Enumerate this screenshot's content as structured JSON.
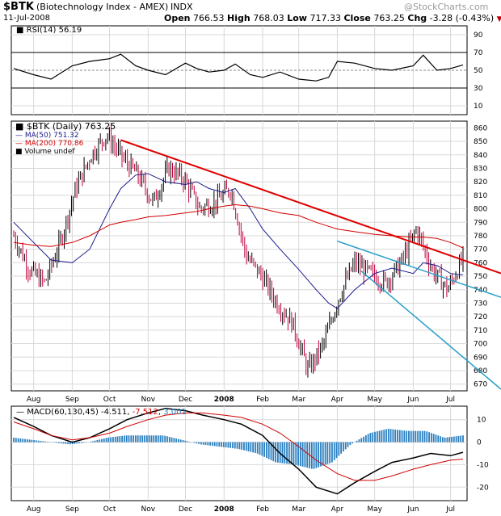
{
  "header": {
    "symbol": "$BTK",
    "name": "(Biotechnology Index - AMEX)",
    "exchange": "INDX",
    "date": "11-Jul-2008",
    "watermark": "@StockCharts.com",
    "quote": {
      "open_label": "Open",
      "open": "766.53",
      "high_label": "High",
      "high": "768.03",
      "low_label": "Low",
      "low": "717.33",
      "close_label": "Close",
      "close": "763.25",
      "chg_label": "Chg",
      "chg": "-3.28 (-0.43%)",
      "chg_marker": "▼"
    }
  },
  "rsi_panel": {
    "label": "RSI(14) 56.19",
    "ticks": [
      "90",
      "70",
      "50",
      "30",
      "10"
    ],
    "levels": [
      90,
      70,
      50,
      30,
      10
    ],
    "overbought": 70,
    "oversold": 30
  },
  "price_panel": {
    "legend": [
      {
        "text": "$BTK (Daily) 763.25",
        "color": "#000000"
      },
      {
        "text": "MA(50) 751.32",
        "color": "#1a1a8c"
      },
      {
        "text": "MA(200) 770.86",
        "color": "#d00000"
      },
      {
        "text": "Volume undef",
        "color": "#000000"
      }
    ],
    "ticks": [
      "860",
      "850",
      "840",
      "830",
      "820",
      "810",
      "800",
      "790",
      "780",
      "770",
      "760",
      "750",
      "740",
      "730",
      "720",
      "710",
      "700",
      "690",
      "680",
      "670"
    ]
  },
  "macd_panel": {
    "label_prefix": "MACD(60,130,45)",
    "macd": "-4.511",
    "signal": "-7.512",
    "histogram": "3.001",
    "ticks": [
      "10",
      "0",
      "-10",
      "-20"
    ]
  },
  "months": [
    "Aug",
    "Sep",
    "Oct",
    "Nov",
    "Dec",
    "2008",
    "Feb",
    "Mar",
    "Apr",
    "May",
    "Jun",
    "Jul"
  ],
  "colors": {
    "up": "#000000",
    "down": "#c0003c",
    "ma50": "#1a1a8c",
    "ma200": "#d00000",
    "trend_red": "#e00000",
    "trend_teal": "#2aa0c8",
    "histogram": "#2a7fc0",
    "grid": "#d8d8d8"
  },
  "chart_data": [
    {
      "type": "line",
      "title": "RSI(14) 56.19",
      "ylim": [
        0,
        100
      ],
      "guides": [
        70,
        50,
        30
      ],
      "x": [
        "2007-07-16",
        "2007-08-01",
        "2007-08-15",
        "2007-09-01",
        "2007-09-15",
        "2007-10-01",
        "2007-10-10",
        "2007-10-22",
        "2007-11-01",
        "2007-11-15",
        "2007-12-01",
        "2007-12-10",
        "2007-12-20",
        "2008-01-01",
        "2008-01-10",
        "2008-01-22",
        "2008-02-01",
        "2008-02-15",
        "2008-03-01",
        "2008-03-15",
        "2008-03-25",
        "2008-04-01",
        "2008-04-15",
        "2008-05-01",
        "2008-05-15",
        "2008-06-01",
        "2008-06-09",
        "2008-06-20",
        "2008-07-01",
        "2008-07-11"
      ],
      "series": [
        {
          "values": [
            52,
            45,
            40,
            55,
            60,
            63,
            68,
            55,
            50,
            45,
            58,
            52,
            48,
            50,
            57,
            45,
            42,
            48,
            40,
            38,
            42,
            60,
            58,
            52,
            50,
            55,
            67,
            50,
            52,
            56
          ]
        }
      ]
    },
    {
      "type": "line",
      "title": "$BTK (Daily) 763.25",
      "ylim": [
        665,
        865
      ],
      "x": [
        "2007-07-16",
        "2007-08-01",
        "2007-08-15",
        "2007-09-01",
        "2007-09-15",
        "2007-10-01",
        "2007-10-10",
        "2007-10-22",
        "2007-11-01",
        "2007-11-15",
        "2007-12-01",
        "2007-12-10",
        "2007-12-20",
        "2008-01-01",
        "2008-01-10",
        "2008-01-22",
        "2008-02-01",
        "2008-02-15",
        "2008-03-01",
        "2008-03-15",
        "2008-03-25",
        "2008-04-01",
        "2008-04-15",
        "2008-05-01",
        "2008-05-15",
        "2008-06-01",
        "2008-06-09",
        "2008-06-20",
        "2008-07-01",
        "2008-07-11"
      ],
      "series": [
        {
          "name": "$BTK (Daily) 763.25",
          "values": [
            780,
            755,
            745,
            775,
            815,
            840,
            855,
            838,
            825,
            805,
            830,
            822,
            800,
            805,
            815,
            765,
            750,
            730,
            715,
            680,
            700,
            735,
            760,
            752,
            745,
            760,
            785,
            755,
            740,
            763
          ]
        },
        {
          "name": "MA(50) 751.32",
          "values": [
            790,
            775,
            762,
            760,
            770,
            800,
            815,
            825,
            826,
            820,
            818,
            820,
            815,
            812,
            815,
            800,
            785,
            770,
            755,
            740,
            730,
            726,
            740,
            752,
            756,
            752,
            760,
            758,
            752,
            751
          ]
        },
        {
          "name": "MA(200) 770.86",
          "values": [
            775,
            773,
            772,
            775,
            780,
            788,
            790,
            792,
            794,
            795,
            797,
            798,
            800,
            802,
            803,
            802,
            800,
            797,
            795,
            790,
            787,
            785,
            783,
            781,
            780,
            779,
            779,
            778,
            775,
            771
          ]
        }
      ],
      "trendlines": [
        {
          "from": [
            "2007-10-10",
            851
          ],
          "to": [
            "2008-07-11",
            762
          ]
        },
        {
          "from": [
            "2008-04-01",
            776
          ],
          "to": [
            "2008-07-11",
            744
          ]
        },
        {
          "from": [
            "2008-04-20",
            754
          ],
          "to": [
            "2008-07-11",
            690
          ]
        }
      ]
    },
    {
      "type": "line",
      "title": "MACD(60,130,45) -4.511, -7.512, 3.001",
      "ylim": [
        -26,
        16
      ],
      "x": [
        "2007-07-16",
        "2007-08-01",
        "2007-08-15",
        "2007-09-01",
        "2007-09-15",
        "2007-10-01",
        "2007-10-15",
        "2007-11-01",
        "2007-11-15",
        "2007-12-01",
        "2007-12-15",
        "2008-01-01",
        "2008-01-15",
        "2008-02-01",
        "2008-02-15",
        "2008-03-01",
        "2008-03-15",
        "2008-04-01",
        "2008-04-15",
        "2008-05-01",
        "2008-05-15",
        "2008-06-01",
        "2008-06-15",
        "2008-07-01",
        "2008-07-11"
      ],
      "series": [
        {
          "name": "MACD",
          "values": [
            11,
            7,
            3,
            0,
            2,
            6,
            10,
            13,
            15,
            14,
            12,
            10,
            8,
            3,
            -5,
            -12,
            -20,
            -23,
            -18,
            -13,
            -9,
            -7,
            -5,
            -6,
            -4.5
          ]
        },
        {
          "name": "Signal",
          "values": [
            9,
            6,
            3,
            1,
            2,
            4,
            7,
            10,
            12,
            13,
            13,
            12,
            11,
            8,
            4,
            -2,
            -8,
            -14,
            -17,
            -17,
            -15,
            -12,
            -10,
            -8,
            -7.5
          ]
        },
        {
          "name": "Histogram",
          "values": [
            2,
            1,
            0,
            -1,
            0,
            2,
            3,
            3,
            3,
            1,
            -1,
            -2,
            -3,
            -5,
            -9,
            -10,
            -12,
            -9,
            -1,
            4,
            6,
            5,
            5,
            2,
            3
          ]
        }
      ]
    }
  ]
}
